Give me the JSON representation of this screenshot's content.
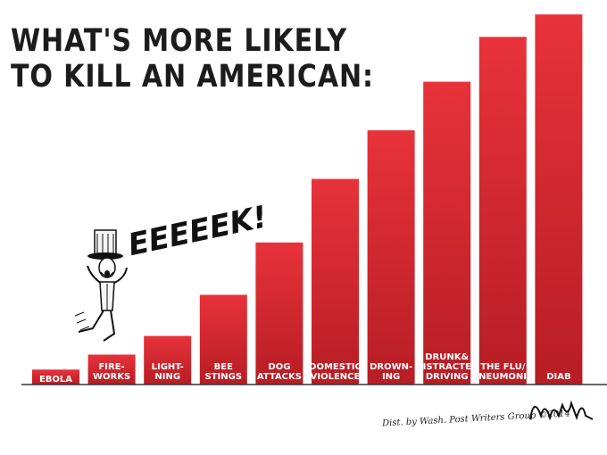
{
  "title": {
    "line1": "WHAT'S MORE LIKELY",
    "line2": "TO KILL AN AMERICAN:"
  },
  "exclamation": "EEEEEK!",
  "credit": "Dist. by Wash. Post Writers Group ©2014",
  "colors": {
    "bar": "#c41e26",
    "bar_light": "#e02a31",
    "baseline": "#333333"
  },
  "chart_data": {
    "type": "bar",
    "title": "WHAT'S MORE LIKELY TO KILL AN AMERICAN:",
    "xlabel": "",
    "ylabel": "",
    "ylim": [
      0,
      10
    ],
    "categories": [
      [
        "EBOLA"
      ],
      [
        "FIRE-",
        "WORKS"
      ],
      [
        "LIGHT-",
        "NING"
      ],
      [
        "BEE",
        "STINGS"
      ],
      [
        "DOG",
        "ATTACKS"
      ],
      [
        "DOMESTIC",
        "VIOLENCE"
      ],
      [
        "DROWN-",
        "ING"
      ],
      [
        "DRUNK&",
        "DISTRACTED",
        "DRIVING"
      ],
      [
        "THE FLU/",
        "PNEUMONIA"
      ],
      [
        "DIAB"
      ]
    ],
    "values": [
      0.4,
      0.8,
      1.3,
      2.4,
      3.8,
      5.5,
      6.8,
      8.1,
      9.3,
      9.9
    ],
    "grid": false,
    "legend": "none"
  }
}
